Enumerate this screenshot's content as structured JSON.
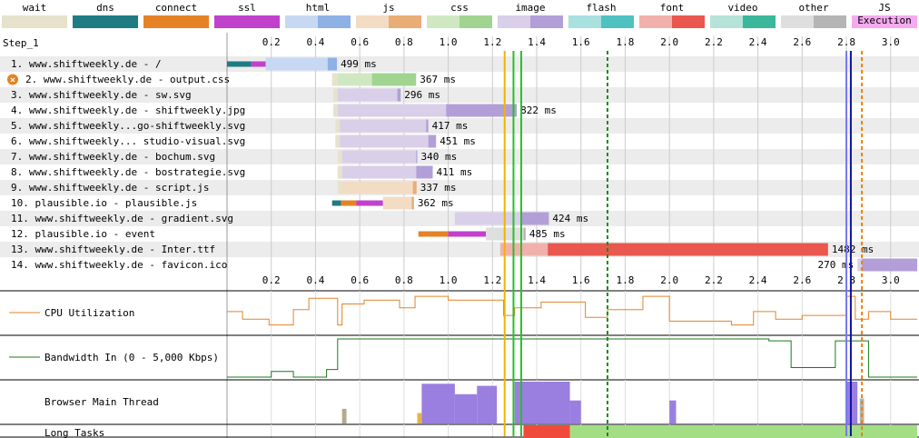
{
  "legend": [
    {
      "label": "wait",
      "color": "#e6e2cc",
      "right": "#e6e2cc"
    },
    {
      "label": "dns",
      "color": "#1f7c83",
      "right": "#1f7c83"
    },
    {
      "label": "connect",
      "color": "#e58226",
      "right": "#e58226"
    },
    {
      "label": "ssl",
      "color": "#c141cd",
      "right": "#c141cd"
    },
    {
      "label": "html",
      "color": "#c7d8f2",
      "right": "#8eb1e6"
    },
    {
      "label": "js",
      "color": "#f3dcc4",
      "right": "#e9ad76"
    },
    {
      "label": "css",
      "color": "#d0e8c2",
      "right": "#a1d490"
    },
    {
      "label": "image",
      "color": "#d9cfe9",
      "right": "#b29fd8"
    },
    {
      "label": "flash",
      "color": "#a9e0e0",
      "right": "#4fc1c1"
    },
    {
      "label": "font",
      "color": "#f2b0ab",
      "right": "#e9574e"
    },
    {
      "label": "video",
      "color": "#b5e3d8",
      "right": "#3bb79b"
    },
    {
      "label": "other",
      "color": "#dedede",
      "right": "#b5b5b5"
    },
    {
      "label": "JS Execution",
      "color": "#f6a9f0",
      "right": "#f6a9f0"
    }
  ],
  "chart_data": {
    "type": "waterfall",
    "title": "Step_1",
    "x_ticks": [
      0.2,
      0.4,
      0.6,
      0.8,
      1.0,
      1.2,
      1.4,
      1.6,
      1.8,
      2.0,
      2.2,
      2.4,
      2.6,
      2.8,
      3.0
    ],
    "x_range": [
      0,
      3.12
    ],
    "unit": "s",
    "rows": [
      {
        "label": "1. www.shiftweekly.de - /",
        "duration": "499 ms",
        "type": "html",
        "error": false,
        "segments": [
          {
            "k": "dns",
            "s": 0.0,
            "e": 0.11
          },
          {
            "k": "connect",
            "s": 0.11,
            "e": 0.11
          },
          {
            "k": "ssl",
            "s": 0.11,
            "e": 0.175
          },
          {
            "k": "html_req",
            "s": 0.175,
            "e": 0.455
          },
          {
            "k": "html_dl",
            "s": 0.455,
            "e": 0.497
          }
        ]
      },
      {
        "label": "2. www.shiftweekly.de - output.css",
        "duration": "367 ms",
        "type": "css",
        "error": true,
        "segments": [
          {
            "k": "wait",
            "s": 0.475,
            "e": 0.5
          },
          {
            "k": "css_req",
            "s": 0.5,
            "e": 0.655
          },
          {
            "k": "css_dl",
            "s": 0.655,
            "e": 0.855
          }
        ]
      },
      {
        "label": "3. www.shiftweekly.de - sw.svg",
        "duration": "296 ms",
        "type": "image",
        "error": false,
        "segments": [
          {
            "k": "wait",
            "s": 0.48,
            "e": 0.5
          },
          {
            "k": "img_req",
            "s": 0.5,
            "e": 0.77
          },
          {
            "k": "img_dl",
            "s": 0.77,
            "e": 0.785
          }
        ]
      },
      {
        "label": "4. www.shiftweekly.de - shiftweekly.jpg",
        "duration": "822 ms",
        "type": "image",
        "error": false,
        "segments": [
          {
            "k": "wait",
            "s": 0.48,
            "e": 0.5
          },
          {
            "k": "img_req",
            "s": 0.5,
            "e": 0.99
          },
          {
            "k": "img_dl",
            "s": 0.99,
            "e": 1.31
          }
        ]
      },
      {
        "label": "5. www.shiftweekly...go-shiftweekly.svg",
        "duration": "417 ms",
        "type": "image",
        "error": false,
        "segments": [
          {
            "k": "wait",
            "s": 0.49,
            "e": 0.51
          },
          {
            "k": "img_req",
            "s": 0.51,
            "e": 0.9
          },
          {
            "k": "img_dl",
            "s": 0.9,
            "e": 0.91
          }
        ]
      },
      {
        "label": "6. www.shiftweekly... studio-visual.svg",
        "duration": "451 ms",
        "type": "image",
        "error": false,
        "segments": [
          {
            "k": "wait",
            "s": 0.49,
            "e": 0.51
          },
          {
            "k": "img_req",
            "s": 0.51,
            "e": 0.91
          },
          {
            "k": "img_dl",
            "s": 0.91,
            "e": 0.945
          }
        ]
      },
      {
        "label": "7. www.shiftweekly.de - bochum.svg",
        "duration": "340 ms",
        "type": "image",
        "error": false,
        "segments": [
          {
            "k": "wait",
            "s": 0.5,
            "e": 0.52
          },
          {
            "k": "img_req",
            "s": 0.52,
            "e": 0.855
          },
          {
            "k": "img_dl",
            "s": 0.855,
            "e": 0.86
          }
        ]
      },
      {
        "label": "8. www.shiftweekly.de - bostrategie.svg",
        "duration": "411 ms",
        "type": "image",
        "error": false,
        "segments": [
          {
            "k": "wait",
            "s": 0.5,
            "e": 0.52
          },
          {
            "k": "img_req",
            "s": 0.52,
            "e": 0.855
          },
          {
            "k": "img_dl",
            "s": 0.855,
            "e": 0.93
          }
        ]
      },
      {
        "label": "9. www.shiftweekly.de - script.js",
        "duration": "337 ms",
        "type": "js",
        "error": false,
        "segments": [
          {
            "k": "wait",
            "s": 0.5,
            "e": 0.52
          },
          {
            "k": "js_req",
            "s": 0.52,
            "e": 0.84
          },
          {
            "k": "js_dl",
            "s": 0.84,
            "e": 0.857
          }
        ]
      },
      {
        "label": "10. plausible.io - plausible.js",
        "duration": "362 ms",
        "type": "js",
        "error": false,
        "segments": [
          {
            "k": "dns",
            "s": 0.475,
            "e": 0.515
          },
          {
            "k": "connect",
            "s": 0.515,
            "e": 0.585
          },
          {
            "k": "ssl",
            "s": 0.585,
            "e": 0.705
          },
          {
            "k": "js_req",
            "s": 0.705,
            "e": 0.835
          },
          {
            "k": "js_dl",
            "s": 0.835,
            "e": 0.845
          }
        ]
      },
      {
        "label": "11. www.shiftweekly.de - gradient.svg",
        "duration": "424 ms",
        "type": "image",
        "error": false,
        "segments": [
          {
            "k": "img_req",
            "s": 1.03,
            "e": 1.33
          },
          {
            "k": "img_dl",
            "s": 1.33,
            "e": 1.455
          }
        ]
      },
      {
        "label": "12. plausible.io - event",
        "duration": "485 ms",
        "type": "other",
        "error": false,
        "segments": [
          {
            "k": "connect",
            "s": 0.865,
            "e": 1.0
          },
          {
            "k": "ssl",
            "s": 1.0,
            "e": 1.17
          },
          {
            "k": "other_req",
            "s": 1.17,
            "e": 1.34
          },
          {
            "k": "other_dl",
            "s": 1.34,
            "e": 1.35
          }
        ]
      },
      {
        "label": "13. www.shiftweekly.de - Inter.ttf",
        "duration": "1482 ms",
        "type": "font",
        "error": false,
        "segments": [
          {
            "k": "font_req",
            "s": 1.235,
            "e": 1.45
          },
          {
            "k": "font_dl",
            "s": 1.45,
            "e": 2.717
          }
        ]
      },
      {
        "label": "14. www.shiftweekly.de - favicon.ico",
        "duration": "270 ms",
        "type": "image",
        "error": false,
        "segments": [
          {
            "k": "wait",
            "s": 2.85,
            "e": 2.85
          },
          {
            "k": "img_req",
            "s": 2.85,
            "e": 2.87
          },
          {
            "k": "img_dl",
            "s": 2.87,
            "e": 3.12
          }
        ],
        "label_left": true
      }
    ],
    "markers": [
      {
        "t": 1.255,
        "color": "#f0b400",
        "style": "solid"
      },
      {
        "t": 1.295,
        "color": "#28c028",
        "style": "solid"
      },
      {
        "t": 1.33,
        "color": "#28c028",
        "style": "solid"
      },
      {
        "t": 1.72,
        "color": "#1a8a1a",
        "style": "dashed"
      },
      {
        "t": 2.8,
        "color": "#7777ee",
        "style": "solid"
      },
      {
        "t": 2.82,
        "color": "#1010aa",
        "style": "solid"
      },
      {
        "t": 2.87,
        "color": "#f08000",
        "style": "dashed"
      }
    ],
    "panels": [
      {
        "label": "CPU Utilization",
        "type": "cpu"
      },
      {
        "label": "Bandwidth In (0 - 5,000 Kbps)",
        "type": "bandwidth"
      },
      {
        "label": "Browser Main Thread",
        "type": "mainthread"
      },
      {
        "label": "Long Tasks",
        "type": "longtasks"
      }
    ],
    "cpu": [
      [
        0,
        0.55
      ],
      [
        0.07,
        0.55
      ],
      [
        0.07,
        0.35
      ],
      [
        0.19,
        0.35
      ],
      [
        0.19,
        0.2
      ],
      [
        0.3,
        0.2
      ],
      [
        0.3,
        0.6
      ],
      [
        0.37,
        0.6
      ],
      [
        0.37,
        0.9
      ],
      [
        0.5,
        0.9
      ],
      [
        0.5,
        0.2
      ],
      [
        0.52,
        0.2
      ],
      [
        0.52,
        0.75
      ],
      [
        0.62,
        0.75
      ],
      [
        0.62,
        0.85
      ],
      [
        0.78,
        0.85
      ],
      [
        0.78,
        0.65
      ],
      [
        0.85,
        0.65
      ],
      [
        0.85,
        0.95
      ],
      [
        1.0,
        0.95
      ],
      [
        1.0,
        0.85
      ],
      [
        1.25,
        0.85
      ],
      [
        1.25,
        0.45
      ],
      [
        1.3,
        0.45
      ],
      [
        1.3,
        0.65
      ],
      [
        1.42,
        0.65
      ],
      [
        1.42,
        0.8
      ],
      [
        1.62,
        0.8
      ],
      [
        1.62,
        0.4
      ],
      [
        1.72,
        0.4
      ],
      [
        1.72,
        0.6
      ],
      [
        1.88,
        0.6
      ],
      [
        1.88,
        0.95
      ],
      [
        2.0,
        0.95
      ],
      [
        2.0,
        0.3
      ],
      [
        2.28,
        0.3
      ],
      [
        2.28,
        0.2
      ],
      [
        2.38,
        0.2
      ],
      [
        2.38,
        0.55
      ],
      [
        2.48,
        0.55
      ],
      [
        2.48,
        0.35
      ],
      [
        2.6,
        0.35
      ],
      [
        2.6,
        0.45
      ],
      [
        2.8,
        0.45
      ],
      [
        2.8,
        0.95
      ],
      [
        2.84,
        0.95
      ],
      [
        2.84,
        0.35
      ],
      [
        2.9,
        0.35
      ],
      [
        2.9,
        0.55
      ],
      [
        3.0,
        0.55
      ],
      [
        3.0,
        0.35
      ],
      [
        3.12,
        0.35
      ]
    ],
    "bandwidth": [
      [
        0,
        0.0
      ],
      [
        0.2,
        0.0
      ],
      [
        0.2,
        0.15
      ],
      [
        0.3,
        0.15
      ],
      [
        0.3,
        0.0
      ],
      [
        0.45,
        0.0
      ],
      [
        0.45,
        0.2
      ],
      [
        0.5,
        0.2
      ],
      [
        0.5,
        1.0
      ],
      [
        2.45,
        1.0
      ],
      [
        2.45,
        0.95
      ],
      [
        2.55,
        0.95
      ],
      [
        2.55,
        0.25
      ],
      [
        2.75,
        0.25
      ],
      [
        2.75,
        0.95
      ],
      [
        2.9,
        0.95
      ],
      [
        2.9,
        0.0
      ],
      [
        3.12,
        0.0
      ]
    ],
    "mainthread_blocks": [
      {
        "s": 0.88,
        "e": 1.03,
        "h": 0.95,
        "color": "#9a7fe0"
      },
      {
        "s": 1.03,
        "e": 1.13,
        "h": 0.7,
        "color": "#9a7fe0"
      },
      {
        "s": 1.13,
        "e": 1.22,
        "h": 0.9,
        "color": "#9a7fe0"
      },
      {
        "s": 1.3,
        "e": 1.55,
        "h": 1.0,
        "color": "#9a7fe0"
      },
      {
        "s": 1.55,
        "e": 1.6,
        "h": 0.55,
        "color": "#9a7fe0"
      },
      {
        "s": 2.0,
        "e": 2.03,
        "h": 0.55,
        "color": "#9a7fe0"
      },
      {
        "s": 2.8,
        "e": 2.85,
        "h": 1.0,
        "color": "#9a7fe0"
      },
      {
        "s": 0.52,
        "e": 0.54,
        "h": 0.35,
        "color": "#b6a98c"
      },
      {
        "s": 0.86,
        "e": 0.88,
        "h": 0.25,
        "color": "#e5b34a"
      },
      {
        "s": 2.86,
        "e": 2.88,
        "h": 0.6,
        "color": "#b5b5b5"
      }
    ],
    "longtasks": [
      {
        "s": 1.34,
        "e": 1.55,
        "color": "#ef4a3c"
      },
      {
        "s": 1.55,
        "e": 3.12,
        "color": "#a3de85"
      }
    ]
  }
}
